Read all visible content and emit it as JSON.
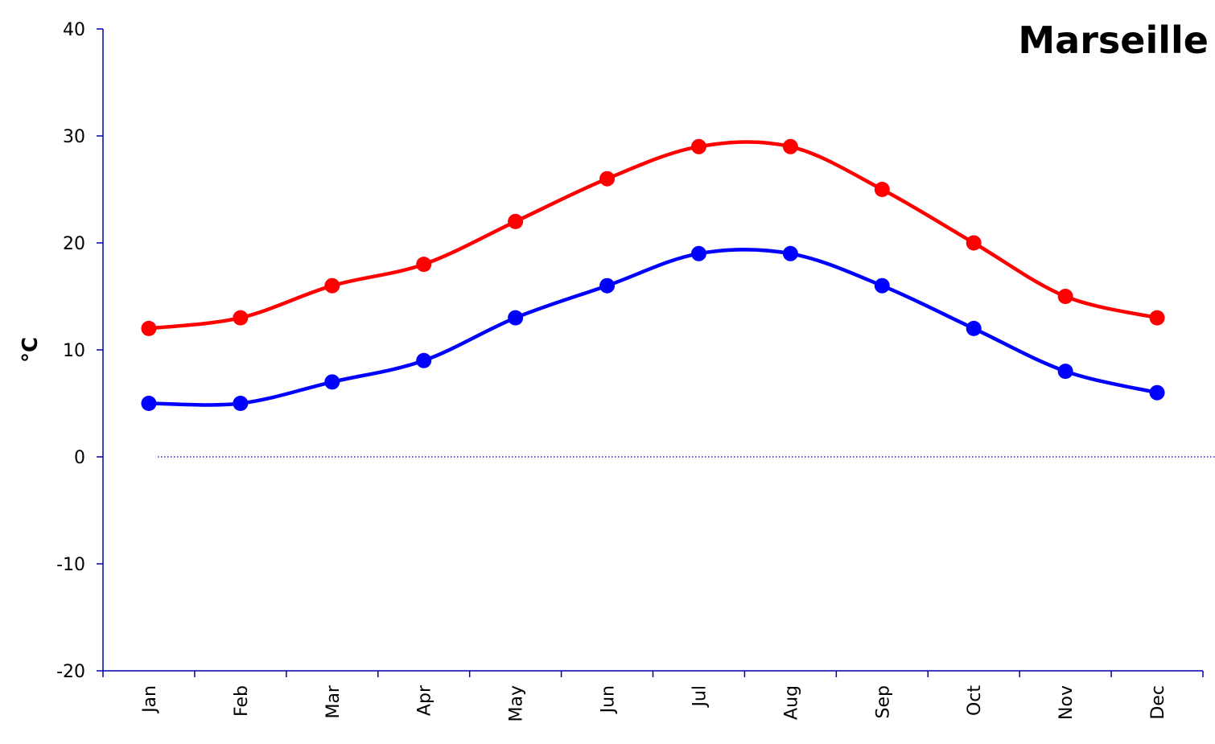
{
  "chart_data": {
    "type": "line",
    "title": "Marseille",
    "xlabel": "",
    "ylabel": "°C",
    "categories": [
      "Jan",
      "Feb",
      "Mar",
      "Apr",
      "May",
      "Jun",
      "Jul",
      "Aug",
      "Sep",
      "Oct",
      "Nov",
      "Dec"
    ],
    "ylim": [
      -20,
      40
    ],
    "yticks": [
      "40",
      "30",
      "20",
      "10",
      "0",
      "-10",
      "-20"
    ],
    "series": [
      {
        "values": [
          12,
          13,
          16,
          18,
          22,
          26,
          29,
          29,
          25,
          20,
          15,
          13
        ],
        "color": "#ff0000"
      },
      {
        "values": [
          5,
          5,
          7,
          9,
          13,
          16,
          19,
          19,
          16,
          12,
          8,
          6
        ],
        "color": "#0000ff"
      }
    ],
    "zero_line": {
      "style": "dotted",
      "color": "#0000aa"
    },
    "axis_color": "#0000aa",
    "grid": false,
    "smoothed": true,
    "markers": "circle"
  }
}
